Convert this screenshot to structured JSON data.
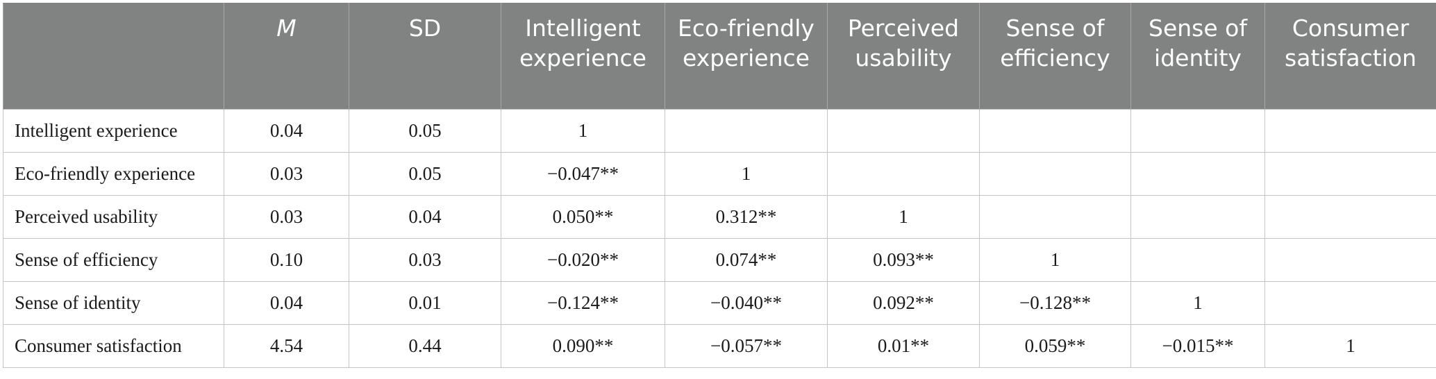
{
  "table": {
    "headers": [
      "",
      "M",
      "SD",
      "Intelligent experience",
      "Eco-friendly experience",
      "Perceived usability",
      "Sense of efficiency",
      "Sense of identity",
      "Consumer satisfaction"
    ],
    "rows": [
      {
        "label": "Intelligent experience",
        "cells": [
          "0.04",
          "0.05",
          "1",
          "",
          "",
          "",
          "",
          ""
        ]
      },
      {
        "label": "Eco-friendly experience",
        "cells": [
          "0.03",
          "0.05",
          "−0.047**",
          "1",
          "",
          "",
          "",
          ""
        ]
      },
      {
        "label": "Perceived usability",
        "cells": [
          "0.03",
          "0.04",
          "0.050**",
          "0.312**",
          "1",
          "",
          "",
          ""
        ]
      },
      {
        "label": "Sense of efficiency",
        "cells": [
          "0.10",
          "0.03",
          "−0.020**",
          "0.074**",
          "0.093**",
          "1",
          "",
          ""
        ]
      },
      {
        "label": "Sense of identity",
        "cells": [
          "0.04",
          "0.01",
          "−0.124**",
          "−0.040**",
          "0.092**",
          "−0.128**",
          "1",
          ""
        ]
      },
      {
        "label": "Consumer satisfaction",
        "cells": [
          "4.54",
          "0.44",
          "0.090**",
          "−0.057**",
          "0.01**",
          "0.059**",
          "−0.015**",
          "1"
        ]
      }
    ],
    "colors": {
      "header_bg": "#818282",
      "header_text": "#ffffff",
      "grid": "#c4c4c4"
    }
  }
}
